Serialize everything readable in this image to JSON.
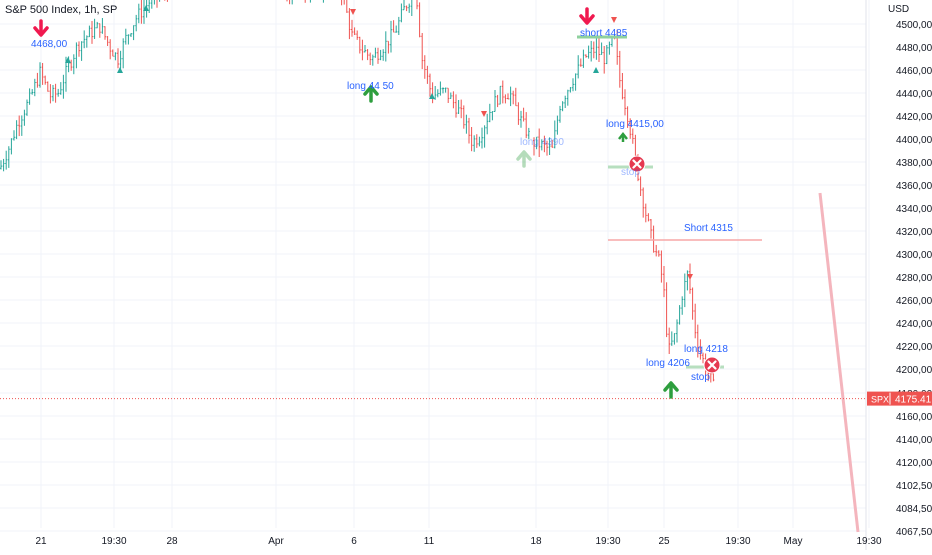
{
  "header": {
    "title": "S&P 500 Index, 1h, SP",
    "currency": "USD"
  },
  "price_label": {
    "symbol": "SPX",
    "value": "4175.41"
  },
  "colors": {
    "up": "#26a69a",
    "down": "#ef5350",
    "annotation_text": "#2962ff",
    "green_arrow": "#2e9e3e",
    "red_arrow": "#f0194f",
    "stop_marker": "#e53950",
    "grid": "#f0f3fa",
    "axis_text": "#131722"
  },
  "chart_data": {
    "type": "candlestick",
    "title": "S&P 500 Index, 1h, SP",
    "ylabel": "USD",
    "ylim": [
      4060,
      4536
    ],
    "y_ticks": [
      "4500,00",
      "4480,00",
      "4460,00",
      "4440,00",
      "4420,00",
      "4400,00",
      "4380,00",
      "4360,00",
      "4340,00",
      "4320,00",
      "4300,00",
      "4280,00",
      "4260,00",
      "4240,00",
      "4220,00",
      "4200,00",
      "4180,00",
      "4160,00",
      "4140,00",
      "4120,00",
      "4102,50",
      "4084,50",
      "4067,50"
    ],
    "x_ticks": [
      "21",
      "19:30",
      "28",
      "Apr",
      "6",
      "11",
      "18",
      "19:30",
      "25",
      "19:30",
      "May",
      "19:30"
    ],
    "last_price": 4175.41,
    "annotations": [
      {
        "text": "4468,00",
        "kind": "short-entry"
      },
      {
        "text": "long  44 50",
        "kind": "long-entry"
      },
      {
        "text": "long 4390",
        "kind": "long-entry-faded"
      },
      {
        "text": "short 4485",
        "kind": "short-entry"
      },
      {
        "text": "long  4415,00",
        "kind": "long-entry"
      },
      {
        "text": "stop",
        "kind": "stop"
      },
      {
        "text": "Short 4315",
        "kind": "short-level"
      },
      {
        "text": "long  4218",
        "kind": "long-entry"
      },
      {
        "text": "long  4206",
        "kind": "long-entry"
      },
      {
        "text": "stop",
        "kind": "stop"
      }
    ],
    "path_anchors": [
      [
        0,
        4375
      ],
      [
        10,
        4395
      ],
      [
        18,
        4415
      ],
      [
        30,
        4435
      ],
      [
        40,
        4458
      ],
      [
        50,
        4438
      ],
      [
        58,
        4440
      ],
      [
        68,
        4462
      ],
      [
        78,
        4482
      ],
      [
        90,
        4492
      ],
      [
        100,
        4498
      ],
      [
        110,
        4480
      ],
      [
        118,
        4470
      ],
      [
        126,
        4488
      ],
      [
        136,
        4505
      ],
      [
        150,
        4520
      ],
      [
        170,
        4530
      ],
      [
        200,
        4534
      ],
      [
        250,
        4534
      ],
      [
        285,
        4525
      ],
      [
        300,
        4530
      ],
      [
        340,
        4534
      ],
      [
        352,
        4490
      ],
      [
        362,
        4478
      ],
      [
        372,
        4470
      ],
      [
        385,
        4482
      ],
      [
        396,
        4495
      ],
      [
        405,
        4515
      ],
      [
        416,
        4530
      ],
      [
        422,
        4470
      ],
      [
        432,
        4438
      ],
      [
        445,
        4442
      ],
      [
        455,
        4430
      ],
      [
        462,
        4420
      ],
      [
        472,
        4398
      ],
      [
        480,
        4403
      ],
      [
        490,
        4425
      ],
      [
        500,
        4440
      ],
      [
        510,
        4440
      ],
      [
        520,
        4418
      ],
      [
        532,
        4398
      ],
      [
        542,
        4395
      ],
      [
        552,
        4390
      ],
      [
        560,
        4430
      ],
      [
        570,
        4448
      ],
      [
        578,
        4460
      ],
      [
        586,
        4472
      ],
      [
        595,
        4478
      ],
      [
        605,
        4470
      ],
      [
        614,
        4488
      ],
      [
        620,
        4450
      ],
      [
        628,
        4420
      ],
      [
        635,
        4385
      ],
      [
        640,
        4360
      ],
      [
        646,
        4335
      ],
      [
        652,
        4312
      ],
      [
        660,
        4292
      ],
      [
        665,
        4260
      ],
      [
        668,
        4215
      ],
      [
        675,
        4230
      ],
      [
        682,
        4265
      ],
      [
        688,
        4285
      ],
      [
        694,
        4240
      ],
      [
        700,
        4215
      ],
      [
        708,
        4198
      ],
      [
        716,
        4180
      ]
    ]
  }
}
